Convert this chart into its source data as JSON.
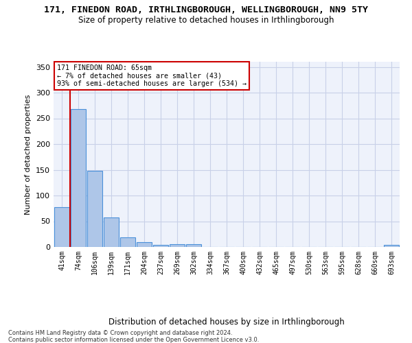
{
  "title": "171, FINEDON ROAD, IRTHLINGBOROUGH, WELLINGBOROUGH, NN9 5TY",
  "subtitle": "Size of property relative to detached houses in Irthlingborough",
  "xlabel": "Distribution of detached houses by size in Irthlingborough",
  "ylabel": "Number of detached properties",
  "bin_labels": [
    "41sqm",
    "74sqm",
    "106sqm",
    "139sqm",
    "171sqm",
    "204sqm",
    "237sqm",
    "269sqm",
    "302sqm",
    "334sqm",
    "367sqm",
    "400sqm",
    "432sqm",
    "465sqm",
    "497sqm",
    "530sqm",
    "563sqm",
    "595sqm",
    "628sqm",
    "660sqm",
    "693sqm"
  ],
  "bar_values": [
    78,
    268,
    148,
    58,
    19,
    10,
    4,
    5,
    5,
    0,
    0,
    0,
    0,
    0,
    0,
    0,
    0,
    0,
    0,
    0,
    4
  ],
  "bar_color": "#aec6e8",
  "bar_edge_color": "#4a90d9",
  "highlight_bin_index": 1,
  "highlight_color": "#cc0000",
  "annotation_title": "171 FINEDON ROAD: 65sqm",
  "annotation_line1": "← 7% of detached houses are smaller (43)",
  "annotation_line2": "93% of semi-detached houses are larger (534) →",
  "annotation_box_color": "#ffffff",
  "annotation_box_edge": "#cc0000",
  "footer_line1": "Contains HM Land Registry data © Crown copyright and database right 2024.",
  "footer_line2": "Contains public sector information licensed under the Open Government Licence v3.0.",
  "ylim": [
    0,
    360
  ],
  "yticks": [
    0,
    50,
    100,
    150,
    200,
    250,
    300,
    350
  ],
  "background_color": "#eef2fb",
  "grid_color": "#c8d0e8"
}
